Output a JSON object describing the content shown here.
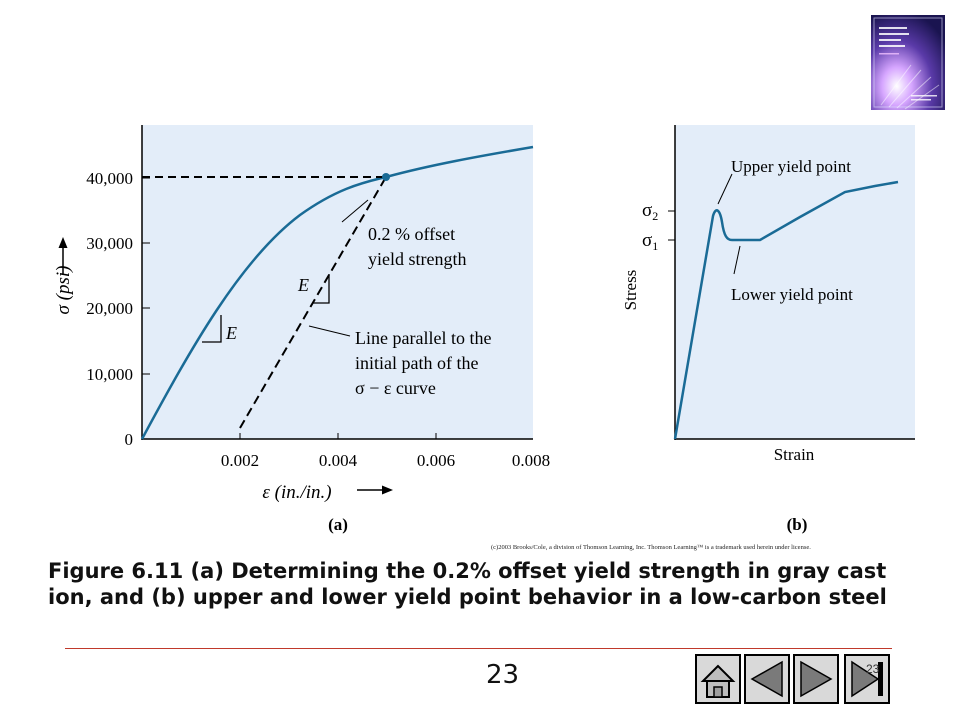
{
  "figure": {
    "panel_a": {
      "y_ticks": [
        "40,000",
        "30,000",
        "20,000",
        "10,000",
        "0"
      ],
      "x_ticks": [
        "0.002",
        "0.004",
        "0.006",
        "0.008"
      ],
      "y_label": "σ (psi)",
      "x_label": "ε (in./in.)",
      "modulus_label": "E",
      "offset_label_line1": "0.2 % offset",
      "offset_label_line2": "yield strength",
      "parallel_label_line1": "Line parallel to the",
      "parallel_label_line2": "initial path of the",
      "parallel_label_line3": "σ − ε  curve",
      "panel_label": "(a)"
    },
    "panel_b": {
      "sigma2": "σ2",
      "sigma1": "σ1",
      "upper_label": "Upper yield point",
      "lower_label": "Lower yield point",
      "y_label": "Stress",
      "x_label": "Strain",
      "panel_label": "(b)"
    },
    "colors": {
      "plot_bg": "#e3edf9",
      "curve": "#1a6b96",
      "axis": "#000000"
    }
  },
  "copyright": "(c)2003 Brooks/Cole, a division of Thomson Learning, Inc.  Thomson Learning™ is a trademark used herein under license.",
  "caption": "Figure 6.11  (a) Determining the 0.2% offset yield strength in gray cast ion, and (b) upper and lower yield point behavior in a low-carbon steel",
  "footer": {
    "page_number": "23",
    "corner_number": "23",
    "nav": [
      "home-icon",
      "previous-icon",
      "next-icon",
      "end-icon"
    ]
  }
}
